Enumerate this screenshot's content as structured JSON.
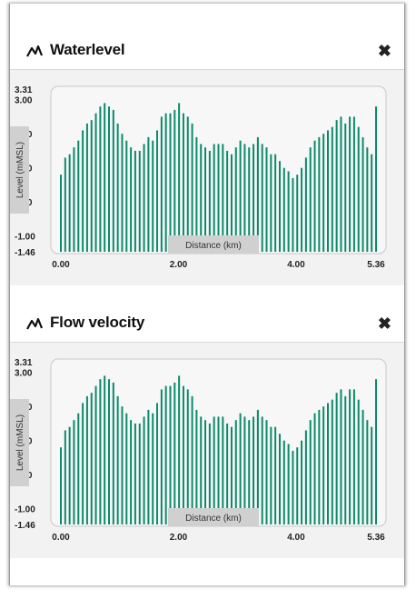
{
  "panels": [
    {
      "title": "Waterlevel",
      "icon": "line-chart-icon",
      "close_icon": "close-icon",
      "chart_data": {
        "type": "bar",
        "ylabel": "Level (mMSL)",
        "xlabel": "Distance (km)",
        "yticks": [
          "3.31",
          "3.00",
          "2.00",
          "1.00",
          "0.00",
          "-1.00",
          "-1.46"
        ],
        "ytick_values": [
          3.31,
          3.0,
          2.0,
          1.0,
          0.0,
          -1.0,
          -1.46
        ],
        "xticks": [
          "0.00",
          "2.00",
          "4.00",
          "5.36"
        ],
        "xtick_values": [
          0,
          2,
          4,
          5.36
        ],
        "ylim": [
          -1.46,
          3.31
        ],
        "xlim": [
          0,
          5.36
        ],
        "bar_color": "#0b8a6a",
        "values": [
          0.8,
          1.3,
          1.4,
          1.6,
          1.8,
          2.1,
          2.3,
          2.4,
          2.6,
          2.8,
          2.9,
          2.8,
          2.7,
          2.3,
          2.0,
          1.8,
          1.6,
          1.5,
          1.5,
          1.7,
          1.9,
          1.8,
          2.1,
          2.5,
          2.6,
          2.6,
          2.7,
          2.9,
          2.6,
          2.5,
          2.3,
          1.9,
          1.7,
          1.6,
          1.5,
          1.7,
          1.7,
          1.7,
          1.5,
          1.4,
          1.6,
          1.8,
          1.7,
          1.6,
          1.7,
          1.9,
          1.7,
          1.6,
          1.4,
          1.4,
          1.2,
          1.0,
          0.9,
          0.7,
          0.8,
          1.0,
          1.3,
          1.6,
          1.8,
          1.9,
          2.0,
          2.1,
          2.2,
          2.4,
          2.5,
          2.3,
          2.5,
          2.5,
          2.2,
          1.9,
          1.6,
          1.4,
          2.8
        ]
      }
    },
    {
      "title": "Flow velocity",
      "icon": "line-chart-icon",
      "close_icon": "close-icon",
      "chart_data": {
        "type": "bar",
        "ylabel": "Level (mMSL)",
        "xlabel": "Distance (km)",
        "yticks": [
          "3.31",
          "3.00",
          "2.00",
          "1.00",
          "0.00",
          "-1.00",
          "-1.46"
        ],
        "ytick_values": [
          3.31,
          3.0,
          2.0,
          1.0,
          0.0,
          -1.0,
          -1.46
        ],
        "xticks": [
          "0.00",
          "2.00",
          "4.00",
          "5.36"
        ],
        "xtick_values": [
          0,
          2,
          4,
          5.36
        ],
        "ylim": [
          -1.46,
          3.31
        ],
        "xlim": [
          0,
          5.36
        ],
        "bar_color": "#0b8a6a",
        "values": [
          0.8,
          1.3,
          1.4,
          1.6,
          1.8,
          2.1,
          2.3,
          2.4,
          2.6,
          2.8,
          2.9,
          2.8,
          2.7,
          2.3,
          2.0,
          1.8,
          1.6,
          1.5,
          1.5,
          1.7,
          1.9,
          1.8,
          2.1,
          2.5,
          2.6,
          2.6,
          2.7,
          2.9,
          2.6,
          2.5,
          2.3,
          1.9,
          1.7,
          1.6,
          1.5,
          1.7,
          1.7,
          1.7,
          1.5,
          1.4,
          1.6,
          1.8,
          1.7,
          1.6,
          1.7,
          1.9,
          1.7,
          1.6,
          1.4,
          1.4,
          1.2,
          1.0,
          0.9,
          0.7,
          0.8,
          1.0,
          1.3,
          1.6,
          1.8,
          1.9,
          2.0,
          2.1,
          2.2,
          2.4,
          2.5,
          2.3,
          2.5,
          2.5,
          2.2,
          1.9,
          1.6,
          1.4,
          2.8
        ]
      }
    }
  ]
}
